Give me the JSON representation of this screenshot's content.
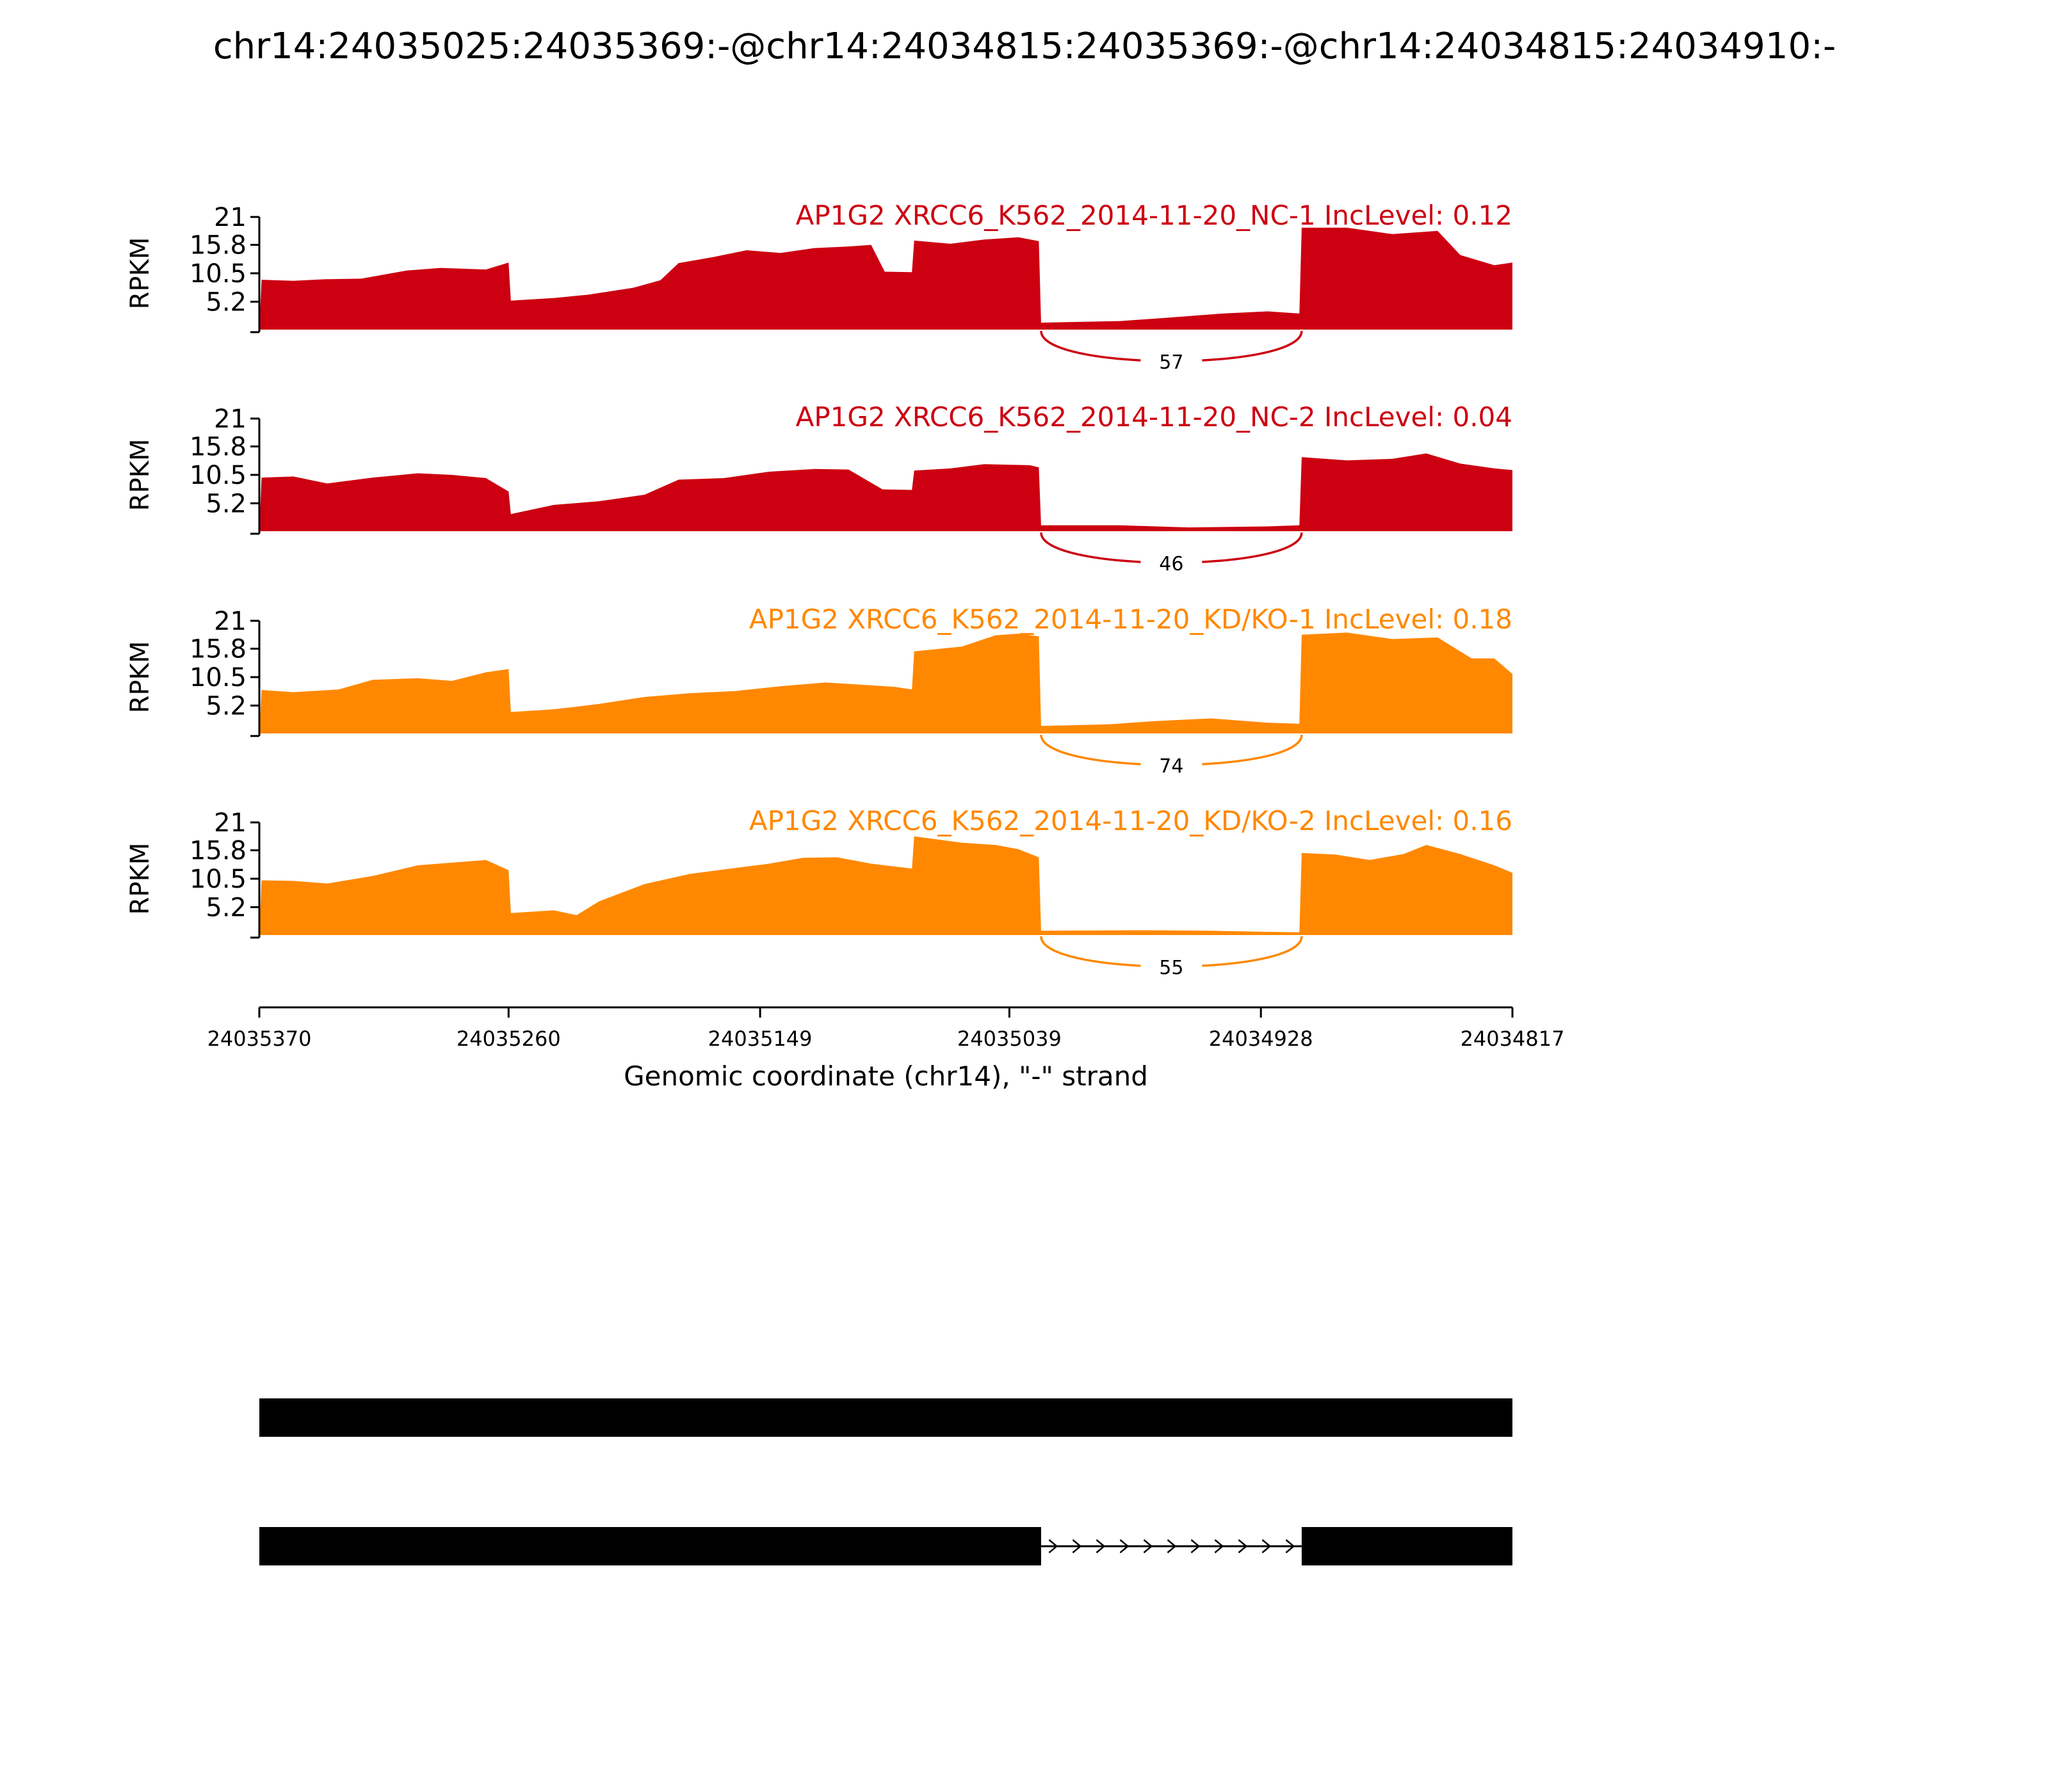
{
  "title": "chr14:24035025:24035369:-@chr14:24034815:24035369:-@chr14:24034815:24034910:-",
  "chart_data": {
    "type": "area",
    "title": "chr14:24035025:24035369:-@chr14:24034815:24035369:-@chr14:24034815:24034910:-",
    "ylabel": "RPKM",
    "xlabel": "Genomic coordinate (chr14), \"-\" strand",
    "xlim": [
      24035370,
      24034817
    ],
    "x_reversed": true,
    "x_ticks": [
      "24035370",
      "24035260",
      "24035149",
      "24035039",
      "24034928",
      "24034817"
    ],
    "y_ticks": [
      "21",
      "15.8",
      "10.5",
      "5.2"
    ],
    "ylim": [
      0,
      21
    ],
    "tracks": [
      {
        "name": "AP1G2 XRCC6_K562_2014-11-20_NC-1 IncLevel: 0.12",
        "color": "#cc0011",
        "junction_count": "57",
        "profile": [
          [
            24035370,
            0
          ],
          [
            24035369,
            9.3
          ],
          [
            24035355,
            9.1
          ],
          [
            24035340,
            9.4
          ],
          [
            24035325,
            9.5
          ],
          [
            24035305,
            11
          ],
          [
            24035290,
            11.5
          ],
          [
            24035270,
            11.2
          ],
          [
            24035260,
            12.5
          ],
          [
            24035259,
            5.4
          ],
          [
            24035240,
            5.9
          ],
          [
            24035225,
            6.5
          ],
          [
            24035205,
            7.8
          ],
          [
            24035193,
            9.2
          ],
          [
            24035185,
            12.4
          ],
          [
            24035170,
            13.5
          ],
          [
            24035155,
            14.8
          ],
          [
            24035140,
            14.3
          ],
          [
            24035125,
            15.2
          ],
          [
            24035110,
            15.5
          ],
          [
            24035100,
            15.8
          ],
          [
            24035094,
            10.8
          ],
          [
            24035082,
            10.7
          ],
          [
            24035081,
            16.6
          ],
          [
            24035065,
            16.0
          ],
          [
            24035050,
            16.8
          ],
          [
            24035035,
            17.2
          ],
          [
            24035026,
            16.5
          ],
          [
            24035025,
            1.3
          ],
          [
            24034990,
            1.6
          ],
          [
            24034970,
            2.2
          ],
          [
            24034945,
            3.0
          ],
          [
            24034925,
            3.4
          ],
          [
            24034911,
            3.0
          ],
          [
            24034910,
            19.0
          ],
          [
            24034890,
            19.0
          ],
          [
            24034870,
            17.8
          ],
          [
            24034850,
            18.4
          ],
          [
            24034840,
            13.9
          ],
          [
            24034825,
            12.0
          ],
          [
            24034817,
            12.5
          ]
        ]
      },
      {
        "name": "AP1G2 XRCC6_K562_2014-11-20_NC-2 IncLevel: 0.04",
        "color": "#cc0011",
        "junction_count": "46",
        "profile": [
          [
            24035370,
            0
          ],
          [
            24035369,
            10.0
          ],
          [
            24035355,
            10.2
          ],
          [
            24035340,
            8.9
          ],
          [
            24035320,
            10.0
          ],
          [
            24035300,
            10.8
          ],
          [
            24035285,
            10.5
          ],
          [
            24035270,
            9.9
          ],
          [
            24035260,
            7.4
          ],
          [
            24035259,
            3.2
          ],
          [
            24035240,
            4.9
          ],
          [
            24035220,
            5.6
          ],
          [
            24035200,
            6.8
          ],
          [
            24035185,
            9.6
          ],
          [
            24035165,
            9.9
          ],
          [
            24035145,
            11.1
          ],
          [
            24035125,
            11.6
          ],
          [
            24035110,
            11.5
          ],
          [
            24035095,
            7.8
          ],
          [
            24035082,
            7.7
          ],
          [
            24035081,
            11.3
          ],
          [
            24035065,
            11.7
          ],
          [
            24035050,
            12.5
          ],
          [
            24035030,
            12.3
          ],
          [
            24035026,
            11.9
          ],
          [
            24035025,
            1.1
          ],
          [
            24034990,
            1.1
          ],
          [
            24034960,
            0.7
          ],
          [
            24034925,
            0.9
          ],
          [
            24034911,
            1.1
          ],
          [
            24034910,
            13.8
          ],
          [
            24034890,
            13.2
          ],
          [
            24034870,
            13.5
          ],
          [
            24034855,
            14.5
          ],
          [
            24034840,
            12.6
          ],
          [
            24034825,
            11.7
          ],
          [
            24034817,
            11.4
          ]
        ]
      },
      {
        "name": "AP1G2 XRCC6_K562_2014-11-20_KD/KO-1 IncLevel: 0.18",
        "color": "#ff8800",
        "junction_count": "74",
        "profile": [
          [
            24035370,
            0
          ],
          [
            24035369,
            8.1
          ],
          [
            24035355,
            7.7
          ],
          [
            24035335,
            8.2
          ],
          [
            24035320,
            10.0
          ],
          [
            24035300,
            10.3
          ],
          [
            24035285,
            9.8
          ],
          [
            24035270,
            11.4
          ],
          [
            24035260,
            12.0
          ],
          [
            24035259,
            4.0
          ],
          [
            24035240,
            4.5
          ],
          [
            24035220,
            5.5
          ],
          [
            24035200,
            6.8
          ],
          [
            24035180,
            7.5
          ],
          [
            24035160,
            7.9
          ],
          [
            24035140,
            8.8
          ],
          [
            24035120,
            9.5
          ],
          [
            24035105,
            9.1
          ],
          [
            24035090,
            8.7
          ],
          [
            24035082,
            8.2
          ],
          [
            24035081,
            15.3
          ],
          [
            24035060,
            16.2
          ],
          [
            24035045,
            18.3
          ],
          [
            24035035,
            18.6
          ],
          [
            24035026,
            18.1
          ],
          [
            24035025,
            1.4
          ],
          [
            24034995,
            1.7
          ],
          [
            24034975,
            2.3
          ],
          [
            24034950,
            2.8
          ],
          [
            24034925,
            2.0
          ],
          [
            24034911,
            1.8
          ],
          [
            24034910,
            18.4
          ],
          [
            24034890,
            18.8
          ],
          [
            24034870,
            17.6
          ],
          [
            24034850,
            17.9
          ],
          [
            24034835,
            14.0
          ],
          [
            24034825,
            14.0
          ],
          [
            24034817,
            11.1
          ]
        ]
      },
      {
        "name": "AP1G2 XRCC6_K562_2014-11-20_KD/KO-2 IncLevel: 0.16",
        "color": "#ff8800",
        "junction_count": "55",
        "profile": [
          [
            24035370,
            0
          ],
          [
            24035369,
            10.2
          ],
          [
            24035355,
            10.1
          ],
          [
            24035340,
            9.6
          ],
          [
            24035320,
            11.0
          ],
          [
            24035300,
            13.0
          ],
          [
            24035285,
            13.5
          ],
          [
            24035270,
            14.0
          ],
          [
            24035260,
            12.1
          ],
          [
            24035259,
            4.1
          ],
          [
            24035240,
            4.6
          ],
          [
            24035230,
            3.7
          ],
          [
            24035220,
            6.3
          ],
          [
            24035200,
            9.5
          ],
          [
            24035180,
            11.4
          ],
          [
            24035160,
            12.5
          ],
          [
            24035145,
            13.3
          ],
          [
            24035130,
            14.4
          ],
          [
            24035115,
            14.5
          ],
          [
            24035100,
            13.3
          ],
          [
            24035082,
            12.4
          ],
          [
            24035081,
            18.4
          ],
          [
            24035060,
            17.2
          ],
          [
            24035045,
            16.8
          ],
          [
            24035035,
            16.0
          ],
          [
            24035026,
            14.5
          ],
          [
            24035025,
            0.8
          ],
          [
            24034980,
            0.9
          ],
          [
            24034950,
            0.8
          ],
          [
            24034925,
            0.6
          ],
          [
            24034911,
            0.5
          ],
          [
            24034910,
            15.3
          ],
          [
            24034895,
            15.0
          ],
          [
            24034880,
            14.0
          ],
          [
            24034865,
            15.1
          ],
          [
            24034855,
            16.8
          ],
          [
            24034840,
            15.1
          ],
          [
            24034825,
            13.0
          ],
          [
            24034817,
            11.6
          ]
        ]
      }
    ],
    "gene_models": [
      {
        "exons": [
          [
            24035370,
            24034817
          ]
        ],
        "strand": "-"
      },
      {
        "exons": [
          [
            24035370,
            24035025
          ],
          [
            24034910,
            24034817
          ]
        ],
        "strand": "-"
      }
    ]
  }
}
